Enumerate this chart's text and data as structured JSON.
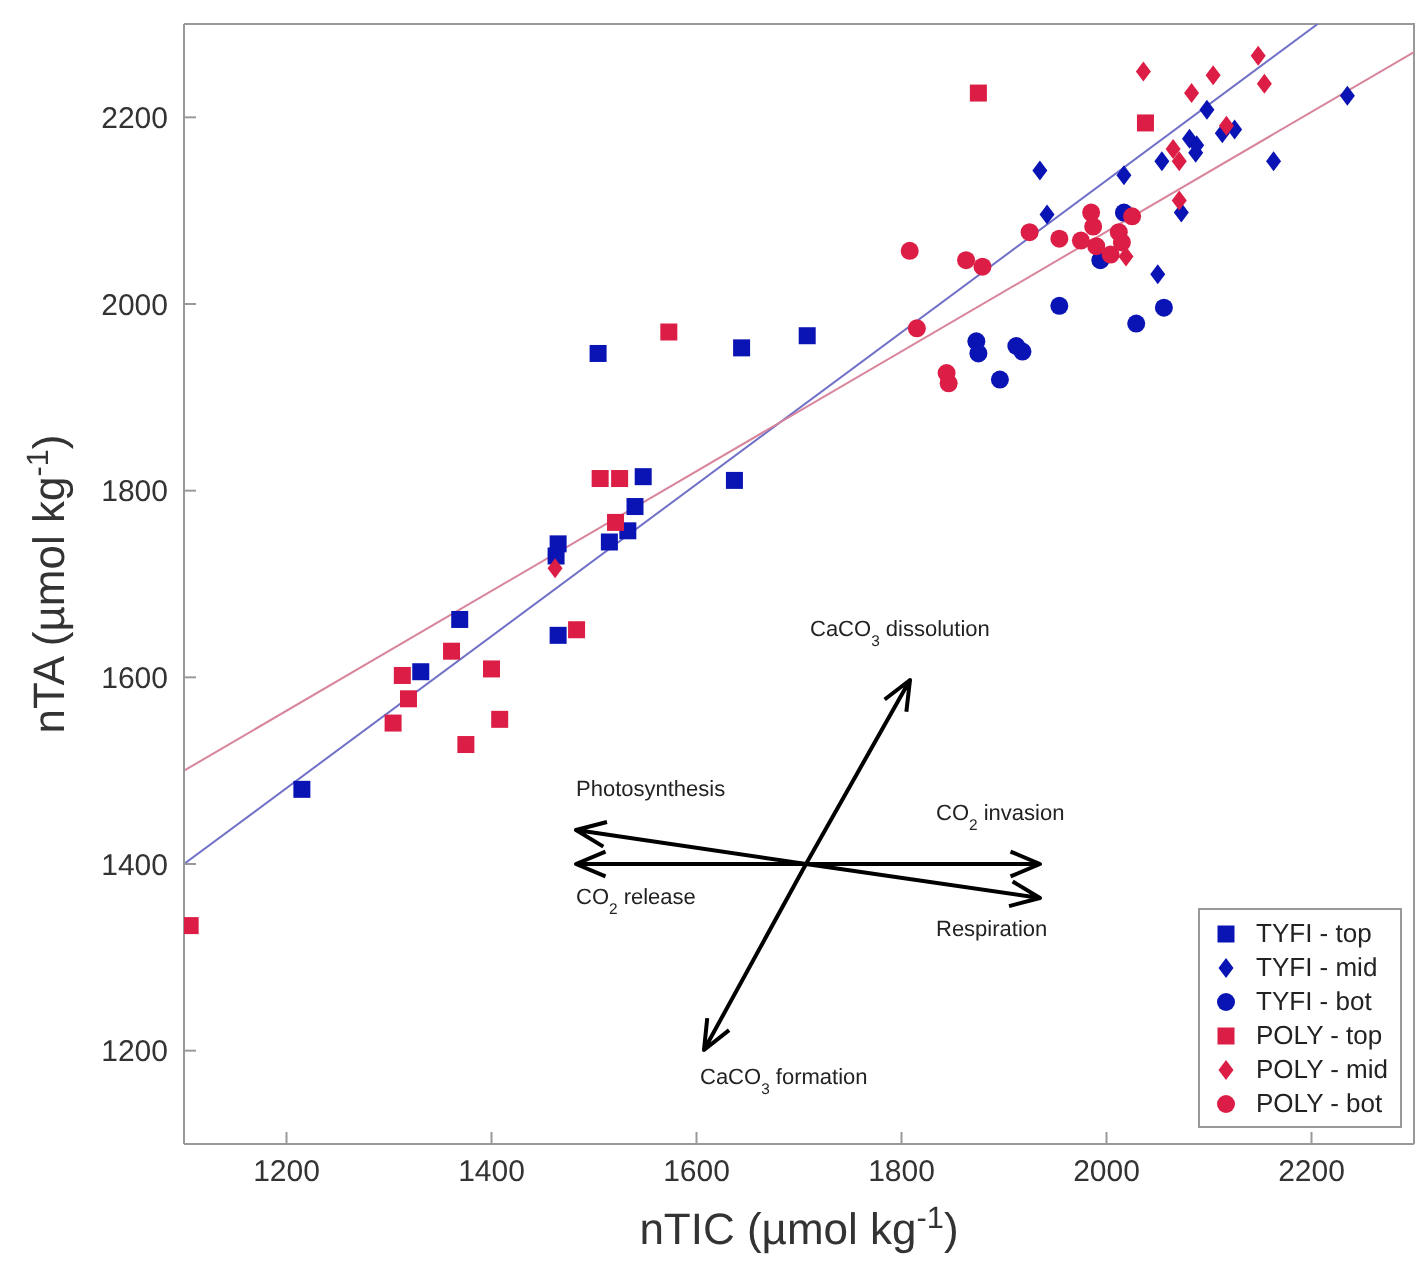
{
  "chart_data": {
    "type": "scatter",
    "xlabel": "nTIC (µmol kg$^{-1}$)",
    "ylabel": "nTA (µmol kg$^{-1}$)",
    "xlim": [
      1100,
      2300
    ],
    "ylim": [
      1100,
      2300
    ],
    "xticks": [
      1200,
      1400,
      1600,
      1800,
      2000,
      2200
    ],
    "yticks": [
      1200,
      1400,
      1600,
      1800,
      2000,
      2200
    ],
    "legend": "bottom right",
    "annotations": [
      "CaCO$_{3}$ dissolution",
      "Photosynthesis",
      "CO$_{2}$ invasion",
      "CO$_{2}$ release",
      "Respiration",
      "CaCO$_{3}$ formation"
    ],
    "series": [
      {
        "name": "TYFI - top",
        "color": "#0a14b4",
        "marker": "square",
        "x": [
          1215,
          1331,
          1369,
          1465,
          1504,
          1644,
          1548,
          1540,
          1533,
          1515,
          1465,
          1463,
          1637,
          1708
        ],
        "values": [
          1480,
          1606,
          1662,
          1645,
          1947,
          1953,
          1815,
          1783,
          1757,
          1745,
          1743,
          1730,
          1811,
          1966
        ]
      },
      {
        "name": "TYFI - mid",
        "color": "#0a14b4",
        "marker": "diamond",
        "x": [
          1935,
          1942,
          2017,
          2054,
          2081,
          2088,
          2087,
          2098,
          2113,
          2125,
          2163,
          2235,
          2073,
          2050
        ],
        "values": [
          2143,
          2096,
          2138,
          2153,
          2177,
          2170,
          2162,
          2208,
          2183,
          2187,
          2153,
          2223,
          2098,
          2032
        ]
      },
      {
        "name": "TYFI - bot",
        "color": "#0a14b4",
        "marker": "circle",
        "x": [
          1954,
          1873,
          1875,
          1912,
          1918,
          1896,
          2029,
          2056,
          2017,
          1994
        ],
        "values": [
          1998,
          1960,
          1947,
          1955,
          1949,
          1919,
          1979,
          1996,
          2098,
          2047
        ]
      },
      {
        "name": "POLY - top",
        "color": "#dc1e46",
        "marker": "square",
        "x": [
          1106,
          1313,
          1319,
          1304,
          1361,
          1375,
          1400,
          1408,
          1483,
          1573,
          1506,
          1525,
          1521,
          1875,
          2038
        ],
        "values": [
          1334,
          1602,
          1577,
          1551,
          1628,
          1528,
          1609,
          1555,
          1651,
          1970,
          1813,
          1813,
          1766,
          2226,
          2194
        ]
      },
      {
        "name": "POLY - mid",
        "color": "#dc1e46",
        "marker": "diamond",
        "x": [
          1462,
          2036,
          2148,
          2104,
          2083,
          2154,
          2117,
          2065,
          2071,
          2071,
          2019
        ],
        "values": [
          1717,
          2249,
          2266,
          2245,
          2226,
          2236,
          2191,
          2166,
          2153,
          2111,
          2051
        ]
      },
      {
        "name": "POLY - bot",
        "color": "#dc1e46",
        "marker": "circle",
        "x": [
          1808,
          1863,
          1879,
          1815,
          1844,
          1846,
          1925,
          1954,
          1985,
          1987,
          1975,
          1990,
          2004,
          2012,
          2025,
          2015
        ],
        "values": [
          2057,
          2047,
          2040,
          1974,
          1926,
          1915,
          2077,
          2070,
          2098,
          2083,
          2068,
          2062,
          2053,
          2077,
          2094,
          2066
        ]
      },
      {
        "type": "line",
        "color": "#7070c8",
        "marker": "none",
        "x": [
          1100,
          2206
        ],
        "values": [
          1400,
          2300
        ]
      },
      {
        "type": "line",
        "color": "#d8849a",
        "marker": "none",
        "x": [
          1100,
          2300
        ],
        "values": [
          1500,
          2270
        ]
      }
    ]
  }
}
